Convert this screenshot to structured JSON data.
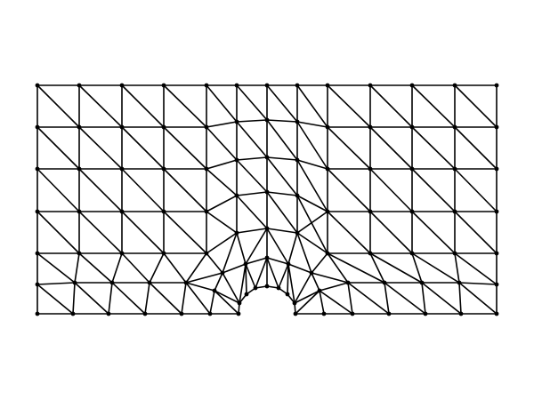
{
  "figure": {
    "type": "triangular-finite-element-mesh",
    "description_visible": "",
    "colors": {
      "background": "#ffffff",
      "edge": "#000000",
      "node": "#000000"
    }
  }
}
